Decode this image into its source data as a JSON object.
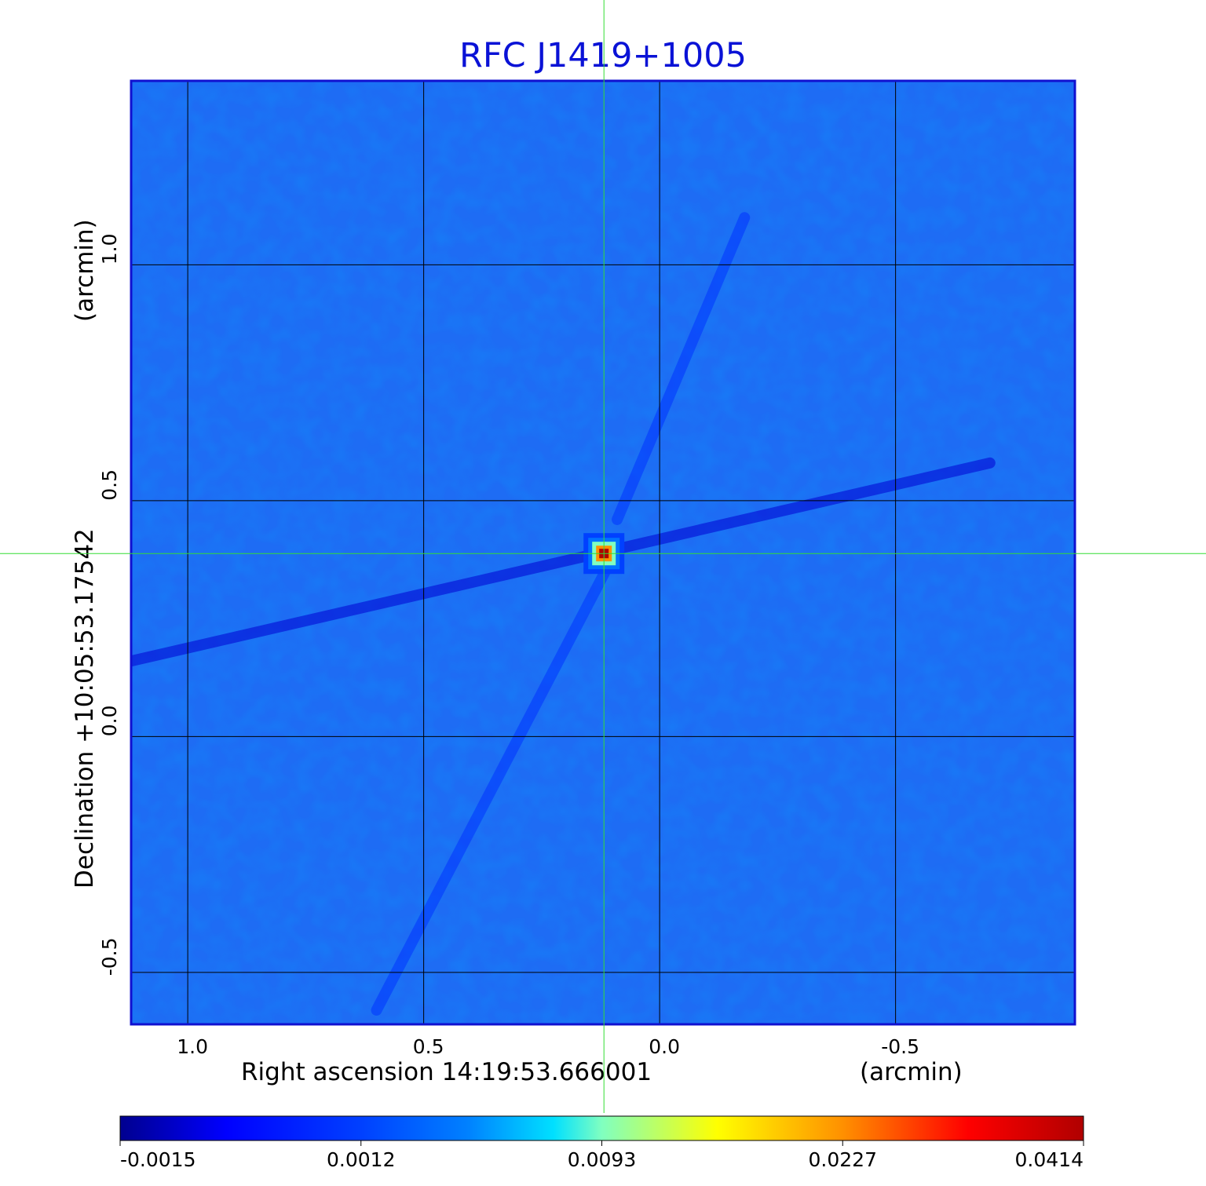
{
  "chart_data": {
    "type": "heatmap",
    "title": "RFC J1419+1005",
    "xlabel": "Right ascension  14:19:53.666001",
    "xunit": "(arcmin)",
    "ylabel": "Declination  +10:05:53.17542",
    "yunit": "(arcmin)",
    "x_ticks": [
      {
        "value": 1.0,
        "label": "1.0"
      },
      {
        "value": 0.5,
        "label": "0.5"
      },
      {
        "value": 0.0,
        "label": "0.0"
      },
      {
        "value": -0.5,
        "label": "-0.5"
      }
    ],
    "y_ticks": [
      {
        "value": 1.0,
        "label": "1.0"
      },
      {
        "value": 0.5,
        "label": "0.5"
      },
      {
        "value": 0.0,
        "label": "0.0"
      },
      {
        "value": -0.5,
        "label": "-0.5"
      }
    ],
    "xlim": [
      1.12,
      -0.88
    ],
    "ylim": [
      -0.61,
      1.39
    ],
    "x_reversed": true,
    "grid": true,
    "crosshair": {
      "x": 0.118,
      "y": 0.388,
      "color": "#33dd33"
    },
    "colormap": "jet",
    "colorbar_ticks": [
      "-0.0015",
      "0.0012",
      "0.0093",
      "0.0227",
      "0.0414"
    ],
    "colorbar_range": [
      -0.0015,
      0.0414
    ],
    "background_level": 0.0,
    "peak": {
      "x": 0.118,
      "y": 0.388,
      "value": 0.0414
    },
    "features": [
      {
        "type": "streak",
        "from": [
          1.12,
          0.16
        ],
        "to": [
          -0.7,
          0.58
        ],
        "value": -0.0008
      },
      {
        "type": "streak",
        "from": [
          0.6,
          -0.58
        ],
        "to": [
          0.11,
          0.36
        ],
        "value": 0.0009
      },
      {
        "type": "streak",
        "from": [
          0.09,
          0.46
        ],
        "to": [
          -0.18,
          1.1
        ],
        "value": 0.0009
      }
    ]
  }
}
